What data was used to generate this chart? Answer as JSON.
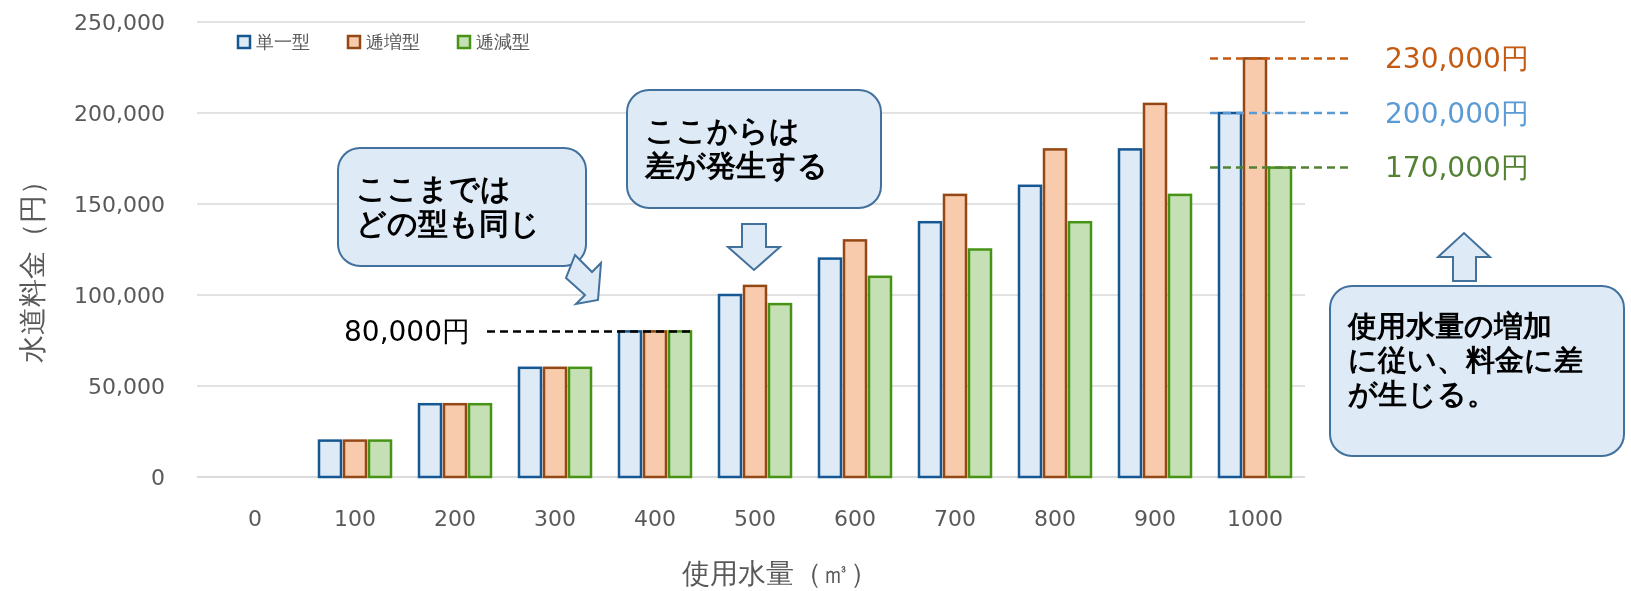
{
  "chart_data": {
    "type": "bar",
    "ylabel": "水道料金（円）",
    "xlabel": "使用水量（㎥）",
    "categories": [
      "0",
      "100",
      "200",
      "300",
      "400",
      "500",
      "600",
      "700",
      "800",
      "900",
      "1000"
    ],
    "series": [
      {
        "name": "単一型",
        "color": "#deebf7",
        "values": [
          null,
          20000,
          40000,
          60000,
          80000,
          100000,
          120000,
          140000,
          160000,
          180000,
          200000
        ]
      },
      {
        "name": "逓増型",
        "color": "#f8cbad",
        "values": [
          null,
          20000,
          40000,
          60000,
          80000,
          105000,
          130000,
          155000,
          180000,
          205000,
          230000
        ]
      },
      {
        "name": "逓減型",
        "color": "#c5e0b4",
        "values": [
          null,
          20000,
          40000,
          60000,
          80000,
          95000,
          110000,
          125000,
          140000,
          155000,
          170000
        ]
      }
    ],
    "ylim": [
      0,
      250000
    ],
    "yticks": [
      {
        "value": 0,
        "label": "0"
      },
      {
        "value": 50000,
        "label": "50,000"
      },
      {
        "value": 100000,
        "label": "100,000"
      },
      {
        "value": 150000,
        "label": "150,000"
      },
      {
        "value": 200000,
        "label": "200,000"
      },
      {
        "value": 250000,
        "label": "250,000"
      }
    ],
    "grid": "y",
    "legend": "top left",
    "ref_lines": [
      {
        "axis": "y",
        "value": 80000,
        "label": "80,000円",
        "color": "#000000",
        "line_style": "dashed"
      },
      {
        "axis": "y",
        "value": 230000,
        "label": "230,000円",
        "color": "#c55a11",
        "line_style": "dashed"
      },
      {
        "axis": "y",
        "value": 200000,
        "label": "200,000円",
        "color": "#5b9bd5",
        "line_style": "dashed"
      },
      {
        "axis": "y",
        "value": 170000,
        "label": "170,000円",
        "color": "#548235",
        "line_style": "dashed"
      }
    ],
    "annotations": [
      "ここまではどの型も同じ",
      "ここからは差が発生する",
      "使用水量の増加に従い、料金に差が生じる。"
    ]
  }
}
